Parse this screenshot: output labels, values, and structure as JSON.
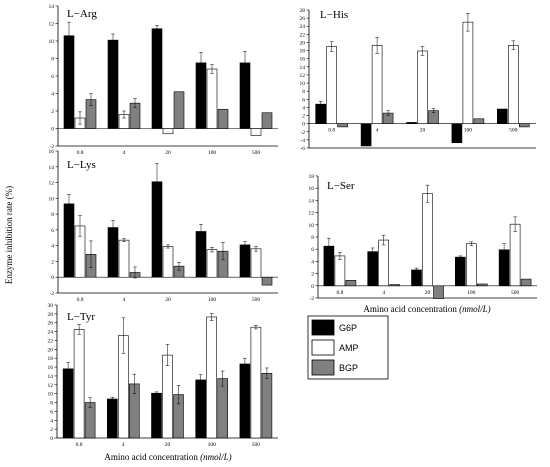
{
  "series_colors": {
    "G6P": "#000000",
    "AMP": "#ffffff",
    "BGP": "#808080"
  },
  "ylabel": "Enzyme  inhibition  rate  (%)",
  "legend": {
    "items": [
      "G6P",
      "AMP",
      "BGP"
    ],
    "placement": "bottom-right"
  },
  "chart_data": [
    {
      "type": "bar",
      "title": "L−Arg",
      "categories": [
        "0.8",
        "4",
        "20",
        "100",
        "500"
      ],
      "ylim": [
        -2,
        14
      ],
      "yticks": [
        -2,
        0,
        2,
        4,
        6,
        8,
        10,
        12,
        14
      ],
      "xlabel": "",
      "series": [
        {
          "name": "G6P",
          "values": [
            10.6,
            10.1,
            11.4,
            7.5,
            7.5
          ],
          "errors": [
            1.5,
            0.7,
            0.4,
            1.2,
            1.3
          ]
        },
        {
          "name": "AMP",
          "values": [
            1.2,
            1.6,
            -0.6,
            6.8,
            -0.8
          ],
          "errors": [
            0.7,
            0.4,
            0,
            0.5,
            0
          ]
        },
        {
          "name": "BGP",
          "values": [
            3.3,
            2.9,
            4.2,
            2.2,
            1.8
          ],
          "errors": [
            0.7,
            0.5,
            0,
            0,
            0
          ]
        }
      ]
    },
    {
      "type": "bar",
      "title": "L−His",
      "categories": [
        "0.8",
        "4",
        "20",
        "100",
        "500"
      ],
      "ylim": [
        -6,
        28
      ],
      "yticks": [
        -6,
        -4,
        -2,
        0,
        2,
        4,
        6,
        8,
        10,
        12,
        14,
        16,
        18,
        20,
        22,
        24,
        26,
        28
      ],
      "xlabel": "",
      "series": [
        {
          "name": "G6P",
          "values": [
            4.8,
            -5.5,
            0.3,
            -4.7,
            3.6
          ],
          "errors": [
            0.7,
            0,
            0,
            0,
            0
          ]
        },
        {
          "name": "AMP",
          "values": [
            19.0,
            19.3,
            17.9,
            25.0,
            19.3
          ],
          "errors": [
            1.2,
            2.0,
            1.1,
            2.2,
            1.1
          ]
        },
        {
          "name": "BGP",
          "values": [
            -0.8,
            2.6,
            3.2,
            1.2,
            -0.8
          ],
          "errors": [
            0,
            0.6,
            0.5,
            0,
            0
          ]
        }
      ]
    },
    {
      "type": "bar",
      "title": "L−Lys",
      "categories": [
        "0.8",
        "4",
        "20",
        "100",
        "500"
      ],
      "ylim": [
        -2,
        16
      ],
      "yticks": [
        -2,
        0,
        2,
        4,
        6,
        8,
        10,
        12,
        14,
        16
      ],
      "xlabel": "",
      "series": [
        {
          "name": "G6P",
          "values": [
            9.3,
            6.3,
            12.1,
            5.8,
            4.1
          ],
          "errors": [
            1.2,
            0.9,
            2.3,
            0.9,
            0.4
          ]
        },
        {
          "name": "AMP",
          "values": [
            6.5,
            4.7,
            3.9,
            3.5,
            3.6
          ],
          "errors": [
            1.3,
            0.2,
            0.2,
            0.3,
            0.3
          ]
        },
        {
          "name": "BGP",
          "values": [
            2.9,
            0.6,
            1.4,
            3.3,
            -1.0
          ],
          "errors": [
            1.7,
            0.7,
            0.5,
            1.1,
            0
          ]
        }
      ]
    },
    {
      "type": "bar",
      "title": "L−Ser",
      "categories": [
        "0.8",
        "4",
        "20",
        "100",
        "500"
      ],
      "ylim": [
        -2,
        18
      ],
      "yticks": [
        -2,
        0,
        2,
        4,
        6,
        8,
        10,
        12,
        14,
        16,
        18
      ],
      "xlabel": "Amino acid concentration",
      "xlabel_unit": "(nmol/L)",
      "series": [
        {
          "name": "G6P",
          "values": [
            6.5,
            5.6,
            2.6,
            4.7,
            5.9
          ],
          "errors": [
            1.3,
            0.6,
            0.3,
            0.2,
            1.0
          ]
        },
        {
          "name": "AMP",
          "values": [
            4.9,
            7.5,
            15.1,
            6.9,
            10.1
          ],
          "errors": [
            0.6,
            0.8,
            1.4,
            0.3,
            1.2
          ]
        },
        {
          "name": "BGP",
          "values": [
            0.9,
            0.2,
            -2.1,
            0.3,
            1.1
          ],
          "errors": [
            0,
            0,
            0,
            0,
            0
          ]
        }
      ]
    },
    {
      "type": "bar",
      "title": "L−Tyr",
      "categories": [
        "0.8",
        "4",
        "20",
        "100",
        "500"
      ],
      "ylim": [
        0,
        30
      ],
      "yticks": [
        0,
        2,
        4,
        6,
        8,
        10,
        12,
        14,
        16,
        18,
        20,
        22,
        24,
        26,
        28,
        30
      ],
      "xlabel": "Amino acid concentration",
      "xlabel_unit": "(nmol/L)",
      "series": [
        {
          "name": "G6P",
          "values": [
            15.6,
            8.8,
            10.1,
            13.1,
            16.7
          ],
          "errors": [
            1.5,
            0.4,
            0.3,
            1.2,
            1.3
          ]
        },
        {
          "name": "AMP",
          "values": [
            24.5,
            23.1,
            18.7,
            27.3,
            25.0
          ],
          "errors": [
            1.1,
            4.0,
            2.4,
            0.8,
            0.4
          ]
        },
        {
          "name": "BGP",
          "values": [
            8.0,
            12.2,
            9.8,
            13.4,
            14.6
          ],
          "errors": [
            1.1,
            2.2,
            2.1,
            1.7,
            1.2
          ]
        }
      ]
    }
  ]
}
